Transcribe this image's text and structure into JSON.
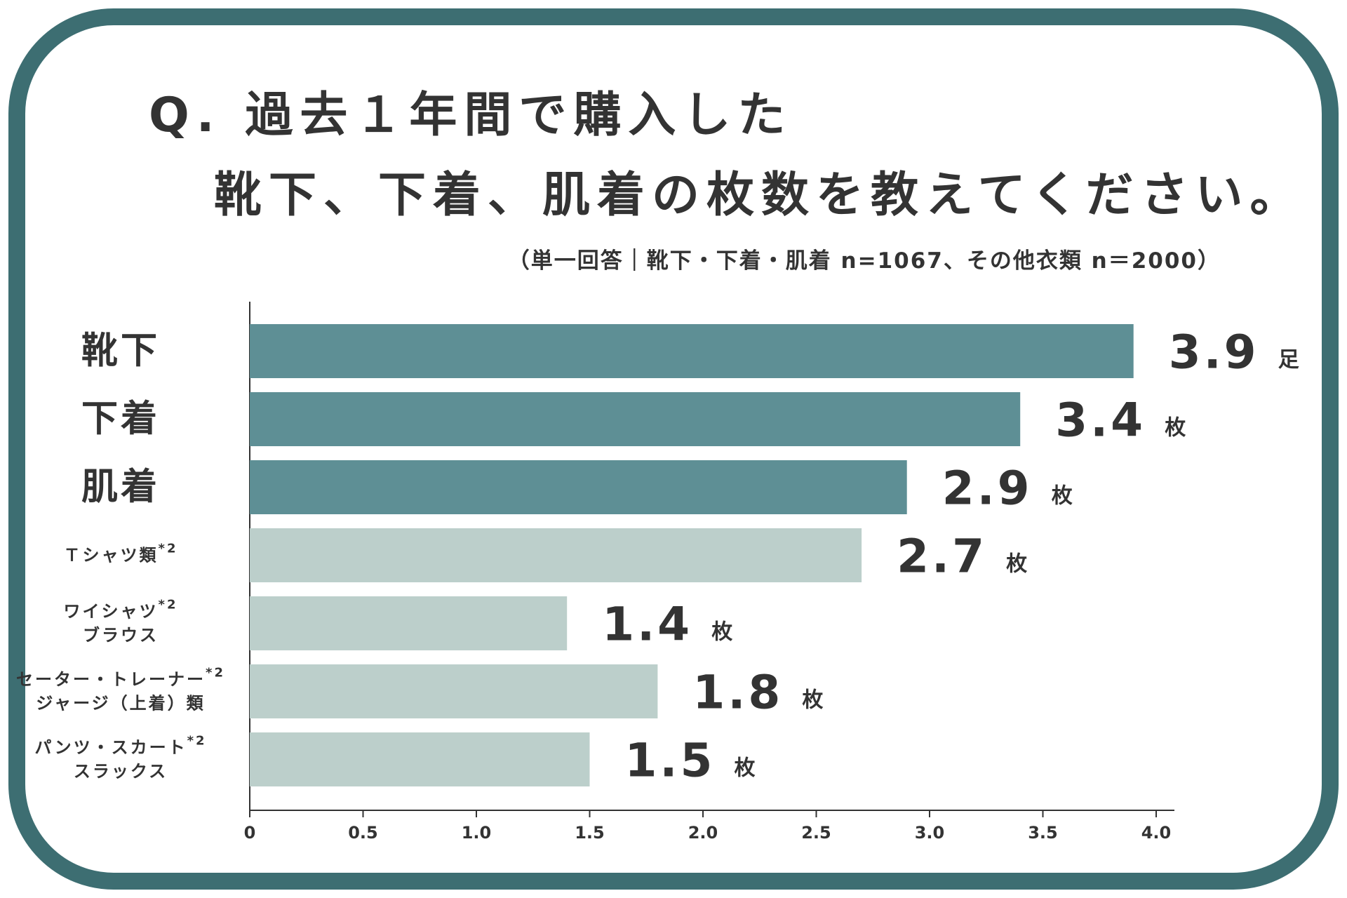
{
  "title": {
    "line1": "Q. 過去１年間で購入した",
    "line2": "靴下、下着、肌着の枚数を教えてください。"
  },
  "subtitle": "（単一回答｜靴下・下着・肌着 n=1067、その他衣類 n＝2000）",
  "colors": {
    "frame": "#3d6e72",
    "bar_dark": "#5e8f95",
    "bar_light": "#bccfcb",
    "text": "#333333",
    "axis": "#333333"
  },
  "chart_data": {
    "type": "bar",
    "orientation": "horizontal",
    "xlim": [
      0,
      4.0
    ],
    "x_ticks": [
      "0",
      "0.5",
      "1.0",
      "1.5",
      "2.0",
      "2.5",
      "3.0",
      "3.5",
      "4.0"
    ],
    "categories": [
      {
        "lines": [
          "靴下"
        ],
        "note": "",
        "value": 3.9,
        "value_label": "3.9",
        "unit": "足",
        "group": "dark"
      },
      {
        "lines": [
          "下着"
        ],
        "note": "",
        "value": 3.4,
        "value_label": "3.4",
        "unit": "枚",
        "group": "dark"
      },
      {
        "lines": [
          "肌着"
        ],
        "note": "",
        "value": 2.9,
        "value_label": "2.9",
        "unit": "枚",
        "group": "dark"
      },
      {
        "lines": [
          "Ｔシャツ類"
        ],
        "note": "*2",
        "value": 2.7,
        "value_label": "2.7",
        "unit": "枚",
        "group": "light"
      },
      {
        "lines": [
          "ワイシャツ",
          "ブラウス"
        ],
        "note": "*2",
        "value": 1.4,
        "value_label": "1.4",
        "unit": "枚",
        "group": "light"
      },
      {
        "lines": [
          "セーター・トレーナー",
          "ジャージ（上着）類"
        ],
        "note": "*2",
        "value": 1.8,
        "value_label": "1.8",
        "unit": "枚",
        "group": "light"
      },
      {
        "lines": [
          "パンツ・スカート",
          "スラックス"
        ],
        "note": "*2",
        "value": 1.5,
        "value_label": "1.5",
        "unit": "枚",
        "group": "light"
      }
    ]
  }
}
